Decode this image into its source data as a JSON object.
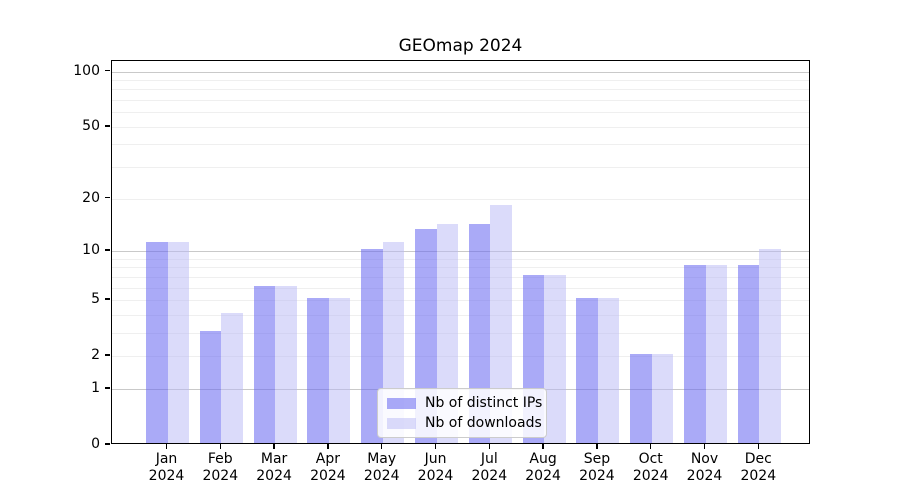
{
  "chart_data": {
    "type": "bar",
    "title": "GEOmap 2024",
    "categories": [
      "Jan",
      "Feb",
      "Mar",
      "Apr",
      "May",
      "Jun",
      "Jul",
      "Aug",
      "Sep",
      "Oct",
      "Nov",
      "Dec"
    ],
    "year_label": "2024",
    "series": [
      {
        "name": "Nb of distinct IPs",
        "color": "rgba(100,100,240,0.55)",
        "values": [
          11,
          3,
          6,
          5,
          10,
          13,
          14,
          7,
          5,
          2,
          8,
          8
        ]
      },
      {
        "name": "Nb of downloads",
        "color": "rgba(183,183,245,0.5)",
        "values": [
          11,
          4,
          6,
          5,
          11,
          14,
          18,
          7,
          5,
          2,
          8,
          10
        ]
      }
    ],
    "xlabel": "",
    "ylabel": "",
    "yscale": "log(1+x)",
    "ylim": [
      0,
      113
    ],
    "ytick_labels": [
      100,
      50,
      20,
      10,
      5,
      2,
      1,
      0
    ],
    "grid_major": [
      1,
      10,
      100
    ],
    "grid_minor": [
      2,
      3,
      4,
      5,
      6,
      7,
      8,
      9,
      20,
      30,
      40,
      50,
      60,
      70,
      80,
      90
    ],
    "grid": true,
    "legend_position": "lower center"
  }
}
